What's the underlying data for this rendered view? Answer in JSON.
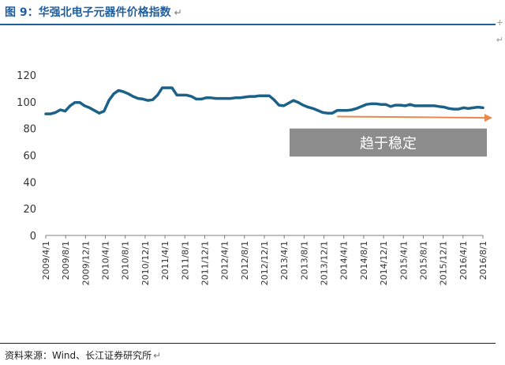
{
  "title": "图 9：华强北电子元器件价格指数",
  "source": "资料来源：Wind、长江证券研究所",
  "return_mark": "↵",
  "side_marks": [
    "+",
    "↵"
  ],
  "colors": {
    "line": "#1c6187",
    "arrow": "#e8894c",
    "box": "#8c8c8c",
    "title": "#1f5fa0"
  },
  "chart_data": {
    "type": "line",
    "title": "",
    "xlabel": "",
    "ylabel": "",
    "ylim": [
      0,
      120
    ],
    "yticks": [
      0,
      20,
      40,
      60,
      80,
      100,
      120
    ],
    "grid": false,
    "x_tick_labels": [
      "2009/4/1",
      "2009/8/1",
      "2009/12/1",
      "2010/4/1",
      "2010/8/1",
      "2010/12/1",
      "2011/4/1",
      "2011/8/1",
      "2011/12/1",
      "2012/4/1",
      "2012/8/1",
      "2012/12/1",
      "2013/4/1",
      "2013/8/1",
      "2013/12/1",
      "2014/4/1",
      "2014/8/1",
      "2014/12/1",
      "2015/4/1",
      "2015/8/1",
      "2015/12/1",
      "2016/4/1",
      "2016/8/1"
    ],
    "series": [
      {
        "values": [
          91,
          91,
          92,
          94,
          93,
          97,
          99.5,
          99.5,
          97,
          95.5,
          93.5,
          91.5,
          93,
          101,
          106,
          108.5,
          107.5,
          106,
          104,
          102.5,
          102,
          101,
          101.5,
          105,
          110.5,
          110.5,
          110.5,
          105,
          105,
          105,
          104,
          102,
          102,
          103,
          103,
          102.5,
          102.5,
          102.5,
          102.5,
          103,
          103,
          103.5,
          104,
          104,
          104.5,
          104.5,
          104.5,
          101.5,
          97.5,
          97,
          99,
          101,
          99.5,
          97.5,
          96,
          95,
          93.5,
          92,
          91.5,
          91.5,
          93.5,
          93.5,
          93.5,
          94,
          95,
          96.5,
          98,
          98.5,
          98.5,
          98,
          98,
          96.5,
          97.5,
          97.5,
          97,
          98,
          97,
          97,
          97,
          97,
          97,
          96.5,
          96,
          95,
          94.5,
          94.5,
          95.5,
          95,
          95.5,
          96,
          95.5
        ]
      }
    ],
    "annotation": {
      "text": "趋于稳定",
      "arrow_from": {
        "x_index": 60,
        "y": 89
      },
      "arrow_to": {
        "x_index": 90,
        "y": 88
      }
    }
  }
}
